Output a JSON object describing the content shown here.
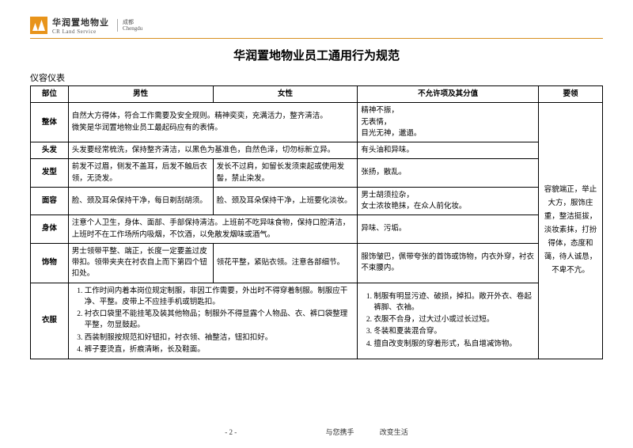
{
  "brand": {
    "cn": "华润置地物业",
    "en": "CR Land Service",
    "sub_top": "成都",
    "sub_bot": "Chengdu"
  },
  "title": "华润置地物业员工通用行为规范",
  "section": "仪容仪表",
  "headers": {
    "part": "部位",
    "male": "男性",
    "female": "女性",
    "forbid": "不允许项及其分值",
    "tips": "要领"
  },
  "rows": {
    "overall": {
      "part": "整体",
      "mf": "自然大方得体，符合工作需要及安全规则。精神奕奕，充满活力，整齐清洁。\n微笑是华润置地物业员工最起码应有的表情。",
      "forbid": "精神不振，\n无表情，\n目光无神，邋遢。"
    },
    "hair": {
      "part": "头发",
      "mf": "头发要经常梳洗，保持整齐清洁，以黑色为基准色，自然色泽，切勿标新立异。",
      "forbid": "有头油和异味。"
    },
    "style": {
      "part": "发型",
      "male": "前发不过眉，侧发不盖耳，后发不触后衣领，无烫发。",
      "female": "发长不过肩，如留长发须束起或使用发髻，禁止染发。",
      "forbid": "张扬，散乱。"
    },
    "face": {
      "part": "面容",
      "male": "脸、颈及耳朵保持干净，每日剃刮胡须。",
      "female": "脸、颈及耳朵保持干净，上班要化淡妆。",
      "forbid": "男士胡须拉杂，\n女士浓妆艳抹，在众人前化妆。"
    },
    "body": {
      "part": "身体",
      "mf": "注意个人卫生，身体、面部、手部保持清洁。上班前不吃异味食物，保持口腔清洁，上班时不在工作场所内吸烟，不饮酒，以免散发烟味或酒气。",
      "forbid": "异味、污垢。"
    },
    "accessory": {
      "part": "饰物",
      "male": "男士领带平整、端正，长度一定要盖过皮带扣。领带夹夹在衬衣自上而下第四个钮扣处。",
      "female": "领花平整，紧贴衣领。注意各部细节。",
      "forbid": "服饰皱巴，佩带夸张的首饰或饰物，内衣外穿，衬衣不束腰内。"
    },
    "clothes": {
      "part": "衣服",
      "mf_list": [
        "工作时间内着本岗位规定制服，非因工作需要，外出时不得穿着制服。制服应干净、平整。皮带上不应挂手机或钥匙扣。",
        "衬衣口袋里不能挂笔及装其他物品；制服外不得显露个人物品、衣、裤口袋整理平整，勿显鼓起。",
        "西装制服按规范扣好钮扣，衬衣领、袖整洁，钮扣扣好。",
        "裤子要烫直，折痕清晰，长及鞋面。"
      ],
      "forbid_list": [
        "制服有明显污迹、破损，掉扣。敞开外衣、卷起裤脚、衣袖。",
        "衣服不合身，过大过小或过长过短。",
        "冬装和夏装混合穿。",
        "擅自改变制服的穿着形式，私自增减饰物。"
      ]
    }
  },
  "tips": "容貌端正，举止大方，服饰庄重，整洁挺拔，淡妆素抹，打扮得体，态度和蔼，待人诚恳，不卑不亢。",
  "footer": {
    "page": "- 2 -",
    "slogan1": "与您携手",
    "slogan2": "改变生活"
  }
}
